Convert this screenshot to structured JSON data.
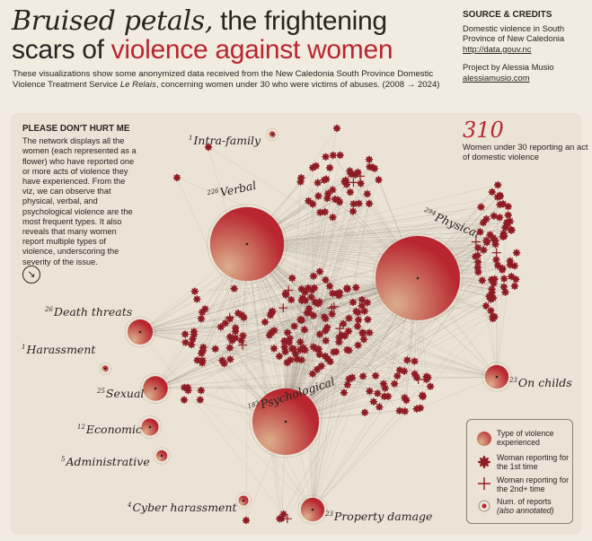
{
  "header": {
    "title_italic": "Bruised petals,",
    "title_rest1": " the frightening",
    "title_line2_a": "scars of ",
    "title_line2_red": "violence against women",
    "subtitle_a": "These visualizations show some anonymized data received from the New Caledonia South Province Domestic Violence Treatment Service ",
    "subtitle_italic": "Le Relais",
    "subtitle_b": ", concerning women under 30 who were victims of abuses. (2008 → 2024)"
  },
  "credits": {
    "heading": "SOURCE & CREDITS",
    "source": "Domestic violence in South Province of New Caledonia",
    "source_link": "http://data.gouv.nc",
    "project": "Project by Alessia Musio",
    "project_link": "alessiamusio.com"
  },
  "intro": {
    "heading": "PLEASE DON'T HURT ME",
    "body": "The network displays all the women (each represented as a flower) who have reported one or more acts of violence they have experienced. From the viz, we can observe that physical, verbal, and psychological violence are the most frequent types. It also reveals that many women report multiple types of violence, underscoring the severity of the issue.",
    "arrow": "↘"
  },
  "stat": {
    "number": "310",
    "label": "Women under 30 reporting an act of domestic violence"
  },
  "legend": {
    "type": "Type of violence experienced",
    "first": "Woman reporting for the 1st time",
    "second": "Woman reporting for the 2nd+ time",
    "reports_a": "Num. of reports",
    "reports_b": "(also annotated)"
  },
  "colors": {
    "accent": "#b8262f",
    "flower": "#8e1c24",
    "hub_light": "#dcae8a",
    "panel": "#ebe3d5",
    "background": "#f1ebe0"
  },
  "chart_data": {
    "type": "network",
    "total_women": 310,
    "categories": [
      "Physical",
      "Verbal",
      "Psychological",
      "Death threats",
      "Sexual",
      "Property damage",
      "On childs",
      "Economic",
      "Administrative",
      "Cyber harassment",
      "Intra-family",
      "Harassment"
    ],
    "values": [
      294,
      226,
      183,
      26,
      25,
      23,
      23,
      12,
      5,
      4,
      1,
      1
    ],
    "nodes": [
      {
        "name": "Physical",
        "count": "294"
      },
      {
        "name": "Verbal",
        "count": "226"
      },
      {
        "name": "Psychological",
        "count": "183"
      },
      {
        "name": "Death threats",
        "count": "26"
      },
      {
        "name": "Sexual",
        "count": "25"
      },
      {
        "name": "Property damage",
        "count": "23"
      },
      {
        "name": "On childs",
        "count": "23"
      },
      {
        "name": "Economic",
        "count": "12"
      },
      {
        "name": "Administrative",
        "count": "5"
      },
      {
        "name": "Cyber harassment",
        "count": "4"
      },
      {
        "name": "Intra-family",
        "count": "1"
      },
      {
        "name": "Harassment",
        "count": "1"
      }
    ]
  }
}
